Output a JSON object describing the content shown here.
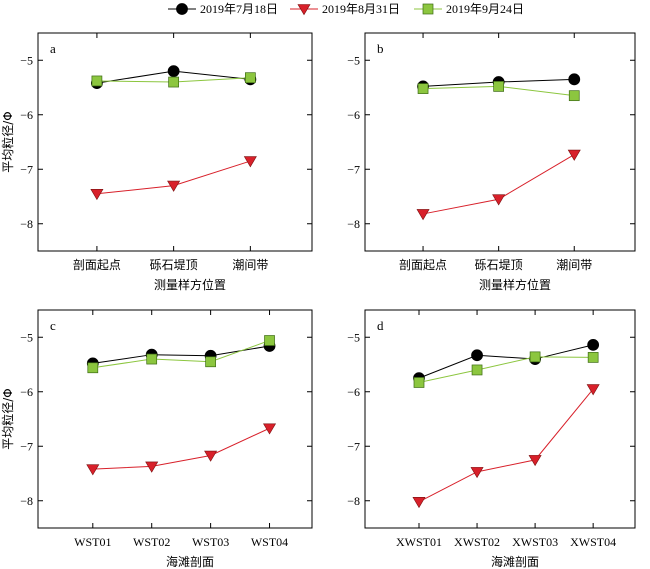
{
  "legend": {
    "position": "top-center",
    "entries": [
      {
        "label": "2019年7月18日",
        "color": "#000000",
        "marker": "circle"
      },
      {
        "label": "2019年8月31日",
        "color": "#d8202a",
        "marker": "triangle-down"
      },
      {
        "label": "2019年9月24日",
        "color": "#8cc63f",
        "marker": "square"
      }
    ]
  },
  "shared_ylabel": "平均粒径/Φ",
  "chart_data": [
    {
      "type": "line",
      "panel": "a",
      "xlabel": "测量样方位置",
      "ylabel": "平均粒径/Φ",
      "categories": [
        "剖面起点",
        "砾石堤顶",
        "潮间带"
      ],
      "ylim": [
        -8.5,
        -4.5
      ],
      "yticks": [
        -8,
        -7,
        -6,
        -5
      ],
      "series": [
        {
          "name": "2019年7月18日",
          "values": [
            -5.42,
            -5.2,
            -5.35
          ]
        },
        {
          "name": "2019年8月31日",
          "values": [
            -7.45,
            -7.3,
            -6.85
          ]
        },
        {
          "name": "2019年9月24日",
          "values": [
            -5.38,
            -5.4,
            -5.32
          ]
        }
      ]
    },
    {
      "type": "line",
      "panel": "b",
      "xlabel": "测量样方位置",
      "ylabel": "",
      "categories": [
        "剖面起点",
        "砾石堤顶",
        "潮间带"
      ],
      "ylim": [
        -8.5,
        -4.5
      ],
      "yticks": [
        -8,
        -7,
        -6,
        -5
      ],
      "series": [
        {
          "name": "2019年7月18日",
          "values": [
            -5.48,
            -5.4,
            -5.35
          ]
        },
        {
          "name": "2019年8月31日",
          "values": [
            -7.82,
            -7.55,
            -6.73
          ]
        },
        {
          "name": "2019年9月24日",
          "values": [
            -5.52,
            -5.48,
            -5.65
          ]
        }
      ]
    },
    {
      "type": "line",
      "panel": "c",
      "xlabel": "海滩剖面",
      "ylabel": "平均粒径/Φ",
      "categories": [
        "WST01",
        "WST02",
        "WST03",
        "WST04"
      ],
      "ylim": [
        -8.5,
        -4.5
      ],
      "yticks": [
        -8,
        -7,
        -6,
        -5
      ],
      "series": [
        {
          "name": "2019年7月18日",
          "values": [
            -5.48,
            -5.32,
            -5.34,
            -5.16
          ]
        },
        {
          "name": "2019年8月31日",
          "values": [
            -7.42,
            -7.37,
            -7.17,
            -6.67
          ]
        },
        {
          "name": "2019年9月24日",
          "values": [
            -5.56,
            -5.4,
            -5.45,
            -5.06
          ]
        }
      ]
    },
    {
      "type": "line",
      "panel": "d",
      "xlabel": "海滩剖面",
      "ylabel": "",
      "categories": [
        "XWST01",
        "XWST02",
        "XWST03",
        "XWST04"
      ],
      "ylim": [
        -8.5,
        -4.5
      ],
      "yticks": [
        -8,
        -7,
        -6,
        -5
      ],
      "series": [
        {
          "name": "2019年7月18日",
          "values": [
            -5.75,
            -5.33,
            -5.4,
            -5.14
          ]
        },
        {
          "name": "2019年8月31日",
          "values": [
            -8.02,
            -7.47,
            -7.25,
            -5.95
          ]
        },
        {
          "name": "2019年9月24日",
          "values": [
            -5.83,
            -5.6,
            -5.36,
            -5.37
          ]
        }
      ]
    }
  ]
}
